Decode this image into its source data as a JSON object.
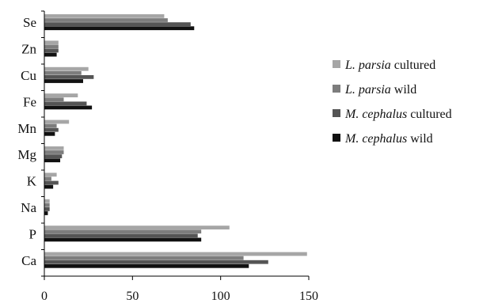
{
  "chart_data": {
    "type": "bar",
    "orientation": "horizontal",
    "categories": [
      "Se",
      "Zn",
      "Cu",
      "Fe",
      "Mn",
      "Mg",
      "K",
      "Na",
      "P",
      "Ca"
    ],
    "series": [
      {
        "name_italic": "L. parsia",
        "name_suffix": " cultured",
        "color": "#a6a6a6",
        "values": [
          68,
          8,
          25,
          19,
          14,
          11,
          7,
          3,
          105,
          149
        ]
      },
      {
        "name_italic": "L. parsia",
        "name_suffix": " wild",
        "color": "#7d7d7d",
        "values": [
          70,
          8,
          21,
          11,
          7,
          11,
          4,
          3,
          89,
          113
        ]
      },
      {
        "name_italic": "M. cephalus",
        "name_suffix": " cultured",
        "color": "#555555",
        "values": [
          83,
          8,
          28,
          24,
          8,
          10,
          8,
          3,
          87,
          127
        ]
      },
      {
        "name_italic": "M. cephalus",
        "name_suffix": " wild",
        "color": "#111111",
        "values": [
          85,
          7,
          22,
          27,
          6,
          9,
          5,
          2,
          89,
          116
        ]
      }
    ],
    "xlim": [
      0,
      150
    ],
    "xticks": [
      0,
      50,
      100,
      150
    ],
    "legend_position": "right",
    "grid": false
  }
}
